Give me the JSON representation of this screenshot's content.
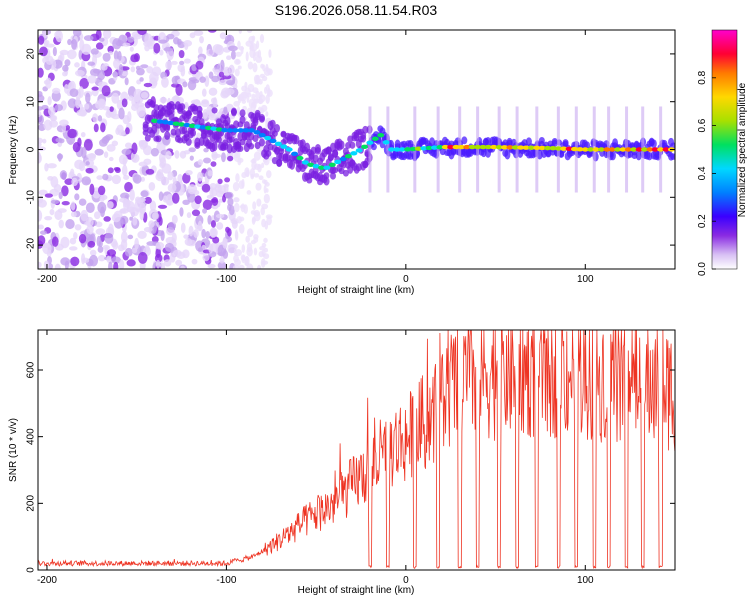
{
  "title": "S196.2026.058.11.54.R03",
  "chart_data": [
    {
      "type": "heatmap",
      "name": "spectrogram",
      "xlabel": "Height of straight line (km)",
      "ylabel": "Frequency (Hz)",
      "xlim": [
        -205,
        150
      ],
      "ylim": [
        -25,
        25
      ],
      "xticks": [
        -200,
        -100,
        0,
        100
      ],
      "yticks": [
        20,
        10,
        0,
        -10,
        -20
      ],
      "colorbar": {
        "label": "Normalized spectral amplitude",
        "range": [
          0,
          1
        ],
        "ticks": [
          0.0,
          0.2,
          0.4,
          0.6,
          0.8
        ],
        "colors": [
          "#ffffff",
          "#c8a8f0",
          "#8a2be2",
          "#3a00ff",
          "#0080ff",
          "#00d8ff",
          "#00e060",
          "#a8e000",
          "#ffd800",
          "#ff7a00",
          "#ff0033",
          "#ff00cc"
        ]
      },
      "ridge": [
        {
          "x": -140,
          "y": 6
        },
        {
          "x": -120,
          "y": 5
        },
        {
          "x": -100,
          "y": 4
        },
        {
          "x": -85,
          "y": 4
        },
        {
          "x": -75,
          "y": 2
        },
        {
          "x": -65,
          "y": 0
        },
        {
          "x": -55,
          "y": -3
        },
        {
          "x": -45,
          "y": -4
        },
        {
          "x": -35,
          "y": -2
        },
        {
          "x": -25,
          "y": 0
        },
        {
          "x": -18,
          "y": 2
        },
        {
          "x": -14,
          "y": 3
        },
        {
          "x": -8,
          "y": 0
        },
        {
          "x": 0,
          "y": 0
        },
        {
          "x": 20,
          "y": 0.5
        },
        {
          "x": 50,
          "y": 0.5
        },
        {
          "x": 80,
          "y": 0.3
        },
        {
          "x": 100,
          "y": 0
        },
        {
          "x": 150,
          "y": 0
        }
      ]
    },
    {
      "type": "line",
      "name": "snr",
      "xlabel": "Height of straight line (km)",
      "ylabel": "SNR (10 * v/v)",
      "xlim": [
        -205,
        150
      ],
      "ylim": [
        0,
        720
      ],
      "xticks": [
        -200,
        -100,
        0,
        100
      ],
      "yticks": [
        0,
        200,
        400,
        600
      ],
      "color": "#ee3322",
      "trend": [
        {
          "x": -205,
          "y": 20
        },
        {
          "x": -100,
          "y": 20
        },
        {
          "x": -85,
          "y": 40
        },
        {
          "x": -70,
          "y": 90
        },
        {
          "x": -55,
          "y": 150
        },
        {
          "x": -40,
          "y": 200
        },
        {
          "x": -25,
          "y": 280
        },
        {
          "x": -10,
          "y": 360
        },
        {
          "x": 5,
          "y": 410
        },
        {
          "x": 15,
          "y": 470
        },
        {
          "x": 25,
          "y": 540
        },
        {
          "x": 40,
          "y": 590
        },
        {
          "x": 60,
          "y": 600
        },
        {
          "x": 90,
          "y": 600
        },
        {
          "x": 120,
          "y": 580
        },
        {
          "x": 150,
          "y": 540
        }
      ],
      "dropouts_x": [
        -20,
        -10,
        5,
        18,
        30,
        40,
        52,
        62,
        73,
        85,
        95,
        105,
        113,
        123,
        132,
        142
      ]
    }
  ]
}
